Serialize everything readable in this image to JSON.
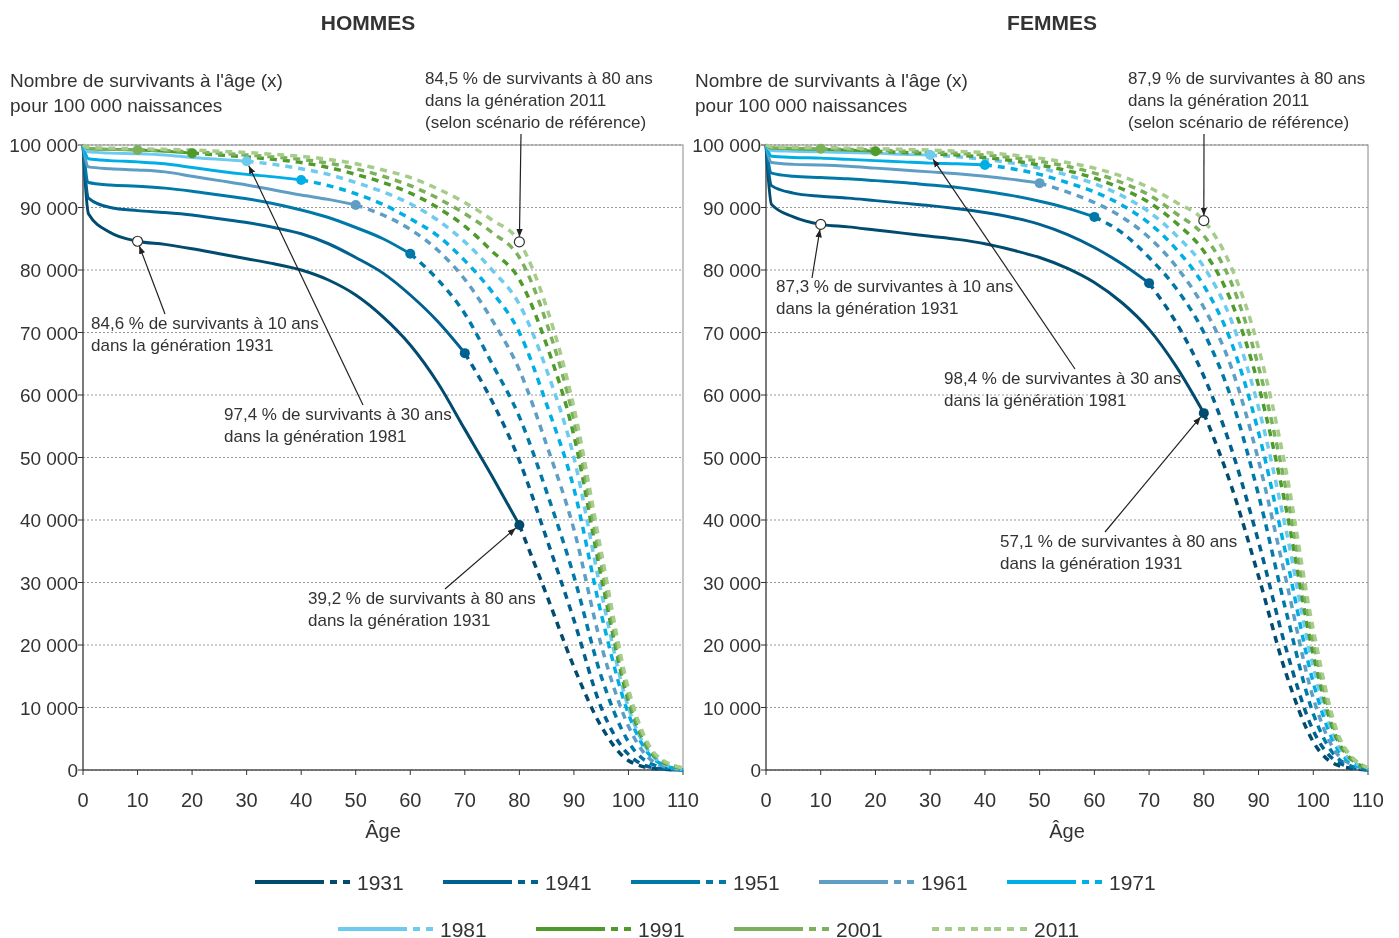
{
  "chart_data": [
    {
      "type": "line",
      "title": "HOMMES",
      "ylabel": "Nombre de survivants à l'âge (x)\npour 100 000 naissances",
      "xlabel": "Âge",
      "xlim": [
        0,
        110
      ],
      "xticks": [
        0,
        10,
        20,
        30,
        40,
        50,
        60,
        70,
        80,
        90,
        100,
        110
      ],
      "ylim": [
        0,
        100000
      ],
      "yticks": [
        {
          "value": 0,
          "label": "0"
        },
        {
          "value": 10000,
          "label": "10 000"
        },
        {
          "value": 20000,
          "label": "20 000"
        },
        {
          "value": 30000,
          "label": "30 000"
        },
        {
          "value": 40000,
          "label": "40 000"
        },
        {
          "value": 50000,
          "label": "50 000"
        },
        {
          "value": 60000,
          "label": "60 000"
        },
        {
          "value": 70000,
          "label": "70 000"
        },
        {
          "value": 80000,
          "label": "80 000"
        },
        {
          "value": 90000,
          "label": "90 000"
        },
        {
          "value": 100000,
          "label": "100 000"
        }
      ],
      "grid": "y",
      "legend": "bottom",
      "annotations": [
        {
          "text": "84,6 % de survivants à 10 ans\ndans la génération 1931",
          "x": 10,
          "y": 84600
        },
        {
          "text": "97,4 % de survivants à 30 ans\ndans la génération 1981",
          "x": 30,
          "y": 97400
        },
        {
          "text": "39,2 % de survivants à 80 ans\ndans la génération 1931",
          "x": 80,
          "y": 39200
        },
        {
          "text": "84,5 % de survivants à 80 ans\ndans la génération 2011\n(selon scénario de référence)",
          "x": 80,
          "y": 84500
        }
      ],
      "series": [
        {
          "name": "1931",
          "color": "#004b6e",
          "line_style": "solid",
          "x": [
            0,
            1,
            5,
            10,
            15,
            20,
            25,
            30,
            35,
            40,
            45,
            50,
            55,
            60,
            65,
            70,
            75,
            80
          ],
          "values": [
            100000,
            89000,
            86000,
            84600,
            84100,
            83400,
            82600,
            81800,
            81000,
            80000,
            78400,
            76000,
            72500,
            68000,
            62000,
            54500,
            47000,
            39200
          ]
        },
        {
          "color": "#004b6e",
          "line_style": "dashed",
          "x": [
            80,
            85,
            90,
            95,
            100,
            105,
            110
          ],
          "values": [
            39200,
            28000,
            16500,
            7000,
            1500,
            200,
            0
          ]
        },
        {
          "name": "1941",
          "color": "#00608f",
          "line_style": "solid",
          "x": [
            0,
            1,
            5,
            10,
            15,
            20,
            25,
            30,
            35,
            40,
            45,
            50,
            55,
            60,
            65,
            70
          ],
          "values": [
            100000,
            91500,
            90000,
            89500,
            89200,
            88800,
            88200,
            87600,
            86800,
            85800,
            84200,
            82000,
            79500,
            76000,
            71800,
            66700
          ]
        },
        {
          "color": "#00608f",
          "line_style": "dashed",
          "x": [
            70,
            75,
            80,
            85,
            90,
            95,
            100,
            105,
            110
          ],
          "values": [
            66700,
            59000,
            49500,
            37000,
            24000,
            10000,
            2500,
            300,
            0
          ]
        },
        {
          "name": "1951",
          "color": "#0079a8",
          "line_style": "solid",
          "x": [
            0,
            1,
            5,
            10,
            15,
            20,
            25,
            30,
            35,
            40,
            45,
            50,
            55,
            60
          ],
          "values": [
            100000,
            94000,
            93600,
            93400,
            93100,
            92600,
            92000,
            91400,
            90600,
            89600,
            88400,
            86800,
            85000,
            82600
          ]
        },
        {
          "color": "#0079a8",
          "line_style": "dashed",
          "x": [
            60,
            65,
            70,
            75,
            80,
            85,
            90,
            95,
            100,
            105,
            110
          ],
          "values": [
            82600,
            78500,
            73000,
            65000,
            56500,
            44500,
            31000,
            15000,
            4500,
            700,
            0
          ]
        },
        {
          "name": "1961",
          "color": "#5f9ec4",
          "line_style": "solid",
          "x": [
            0,
            1,
            5,
            10,
            15,
            20,
            25,
            30,
            35,
            40,
            45,
            50
          ],
          "values": [
            100000,
            96500,
            96200,
            96000,
            95700,
            95000,
            94300,
            93600,
            92800,
            92000,
            91300,
            90400
          ]
        },
        {
          "color": "#5f9ec4",
          "line_style": "dashed",
          "x": [
            50,
            55,
            60,
            65,
            70,
            75,
            80,
            85,
            90,
            95,
            100,
            105,
            110
          ],
          "values": [
            90400,
            88800,
            86500,
            83200,
            78500,
            72000,
            64000,
            52000,
            38500,
            20000,
            7000,
            1100,
            0
          ]
        },
        {
          "name": "1971",
          "color": "#00aee6",
          "line_style": "solid",
          "x": [
            0,
            1,
            5,
            10,
            15,
            20,
            25,
            30,
            35,
            40
          ],
          "values": [
            100000,
            97800,
            97500,
            97300,
            97000,
            96400,
            95800,
            95300,
            94900,
            94400
          ]
        },
        {
          "color": "#00aee6",
          "line_style": "dashed",
          "x": [
            40,
            45,
            50,
            55,
            60,
            65,
            70,
            75,
            80,
            85,
            90,
            95,
            100,
            105,
            110
          ],
          "values": [
            94400,
            93500,
            92200,
            90500,
            88200,
            85500,
            81500,
            76500,
            70000,
            58500,
            45000,
            25000,
            9000,
            1500,
            0
          ]
        },
        {
          "name": "1981",
          "color": "#6ccbee",
          "line_style": "solid",
          "x": [
            0,
            1,
            5,
            10,
            15,
            20,
            25,
            30
          ],
          "values": [
            100000,
            98900,
            98700,
            98600,
            98400,
            98000,
            97700,
            97400
          ]
        },
        {
          "color": "#6ccbee",
          "line_style": "dashed",
          "x": [
            30,
            35,
            40,
            45,
            50,
            55,
            60,
            65,
            70,
            75,
            80,
            85,
            90,
            95,
            100,
            105,
            110
          ],
          "values": [
            97400,
            96900,
            96200,
            95300,
            94000,
            92500,
            90600,
            88000,
            84500,
            80000,
            74500,
            64000,
            50000,
            28500,
            10000,
            1800,
            100
          ]
        },
        {
          "name": "1991",
          "color": "#4e9a2b",
          "line_style": "solid",
          "x": [
            0,
            1,
            5,
            10,
            15,
            20
          ],
          "values": [
            100000,
            99400,
            99300,
            99200,
            99000,
            98700
          ]
        },
        {
          "color": "#4e9a2b",
          "line_style": "dashed",
          "x": [
            20,
            25,
            30,
            35,
            40,
            45,
            50,
            55,
            60,
            65,
            70,
            75,
            80,
            85,
            90,
            95,
            100,
            105,
            110
          ],
          "values": [
            98700,
            98400,
            98100,
            97700,
            97200,
            96400,
            95300,
            94000,
            92300,
            90000,
            87000,
            83000,
            78500,
            68000,
            53500,
            31000,
            11000,
            2000,
            200
          ]
        },
        {
          "name": "2001",
          "color": "#7bb15b",
          "line_style": "solid",
          "x": [
            0,
            1,
            5,
            10
          ],
          "values": [
            100000,
            99500,
            99300,
            99200
          ]
        },
        {
          "color": "#7bb15b",
          "line_style": "dashed",
          "x": [
            10,
            15,
            20,
            25,
            30,
            35,
            40,
            45,
            50,
            55,
            60,
            65,
            70,
            75,
            80,
            85,
            90,
            95,
            100,
            105,
            110
          ],
          "values": [
            99200,
            99100,
            98900,
            98700,
            98400,
            98100,
            97700,
            97100,
            96200,
            95000,
            93500,
            91500,
            89000,
            86000,
            82000,
            71500,
            56000,
            33000,
            12000,
            2200,
            300
          ]
        },
        {
          "name": "2011",
          "color": "#a6cc8a",
          "line_style": "dashed",
          "x": [
            0,
            1,
            5,
            10,
            15,
            20,
            25,
            30,
            35,
            40,
            45,
            50,
            55,
            60,
            65,
            70,
            75,
            80,
            85,
            90,
            95,
            100,
            105,
            110
          ],
          "values": [
            100000,
            99600,
            99500,
            99400,
            99300,
            99200,
            99000,
            98800,
            98500,
            98200,
            97700,
            97000,
            96000,
            94800,
            93000,
            90800,
            88000,
            84500,
            74000,
            58000,
            35000,
            13000,
            2500,
            300
          ]
        },
        {
          "type": "scatter",
          "x": [
            80,
            70,
            60,
            50,
            40,
            30,
            20,
            10
          ],
          "values": [
            39200,
            66700,
            82600,
            90400,
            94400,
            97400,
            98700,
            99200
          ],
          "colors": [
            "#004b6e",
            "#00608f",
            "#0079a8",
            "#5f9ec4",
            "#00aee6",
            "#6ccbee",
            "#4e9a2b",
            "#7bb15b"
          ]
        }
      ]
    },
    {
      "type": "line",
      "title": "FEMMES",
      "ylabel": "Nombre de survivants à l'âge (x)\npour 100 000 naissances",
      "xlabel": "Âge",
      "xlim": [
        0,
        110
      ],
      "xticks": [
        0,
        10,
        20,
        30,
        40,
        50,
        60,
        70,
        80,
        90,
        100,
        110
      ],
      "ylim": [
        0,
        100000
      ],
      "yticks": [
        {
          "value": 0,
          "label": "0"
        },
        {
          "value": 10000,
          "label": "10 000"
        },
        {
          "value": 20000,
          "label": "20 000"
        },
        {
          "value": 30000,
          "label": "30 000"
        },
        {
          "value": 40000,
          "label": "40 000"
        },
        {
          "value": 50000,
          "label": "50 000"
        },
        {
          "value": 60000,
          "label": "60 000"
        },
        {
          "value": 70000,
          "label": "70 000"
        },
        {
          "value": 80000,
          "label": "80 000"
        },
        {
          "value": 90000,
          "label": "90 000"
        },
        {
          "value": 100000,
          "label": "100 000"
        }
      ],
      "grid": "y",
      "annotations": [
        {
          "text": "87,3 % de survivantes à 10 ans\ndans la génération 1931",
          "x": 10,
          "y": 87300
        },
        {
          "text": "98,4 % de survivantes à 30 ans\ndans la génération 1981",
          "x": 30,
          "y": 98400
        },
        {
          "text": "57,1 % de survivantes à 80 ans\ndans la génération 1931",
          "x": 80,
          "y": 57100
        },
        {
          "text": "87,9 % de survivantes à 80 ans\ndans la génération 2011\n(selon scénario de référence)",
          "x": 80,
          "y": 87900
        }
      ],
      "series": [
        {
          "name": "1931",
          "color": "#004b6e",
          "line_style": "solid",
          "x": [
            0,
            1,
            5,
            10,
            15,
            20,
            25,
            30,
            35,
            40,
            45,
            50,
            55,
            60,
            65,
            70,
            75,
            80
          ],
          "values": [
            100000,
            90500,
            88500,
            87300,
            86900,
            86400,
            85900,
            85400,
            84900,
            84200,
            83200,
            82000,
            80300,
            78000,
            74800,
            70500,
            64500,
            57100
          ]
        },
        {
          "color": "#004b6e",
          "line_style": "dashed",
          "x": [
            80,
            85,
            90,
            95,
            100,
            105,
            110
          ],
          "values": [
            57100,
            45500,
            31000,
            15500,
            4500,
            600,
            0
          ]
        },
        {
          "name": "1941",
          "color": "#00608f",
          "line_style": "solid",
          "x": [
            0,
            1,
            5,
            10,
            15,
            20,
            25,
            30,
            35,
            40,
            45,
            50,
            55,
            60,
            65,
            70
          ],
          "values": [
            100000,
            93500,
            92300,
            91800,
            91500,
            91100,
            90700,
            90300,
            89800,
            89200,
            88400,
            87300,
            85700,
            83600,
            81000,
            77900
          ]
        },
        {
          "color": "#00608f",
          "line_style": "dashed",
          "x": [
            70,
            75,
            80,
            85,
            90,
            95,
            100,
            105,
            110
          ],
          "values": [
            77900,
            71500,
            63000,
            51500,
            36500,
            19500,
            6300,
            1000,
            0
          ]
        },
        {
          "name": "1951",
          "color": "#0079a8",
          "line_style": "solid",
          "x": [
            0,
            1,
            5,
            10,
            15,
            20,
            25,
            30,
            35,
            40,
            45,
            50,
            55,
            60
          ],
          "values": [
            100000,
            95500,
            95000,
            94800,
            94600,
            94300,
            94000,
            93600,
            93200,
            92600,
            91900,
            91000,
            89900,
            88500
          ]
        },
        {
          "color": "#0079a8",
          "line_style": "dashed",
          "x": [
            60,
            65,
            70,
            75,
            80,
            85,
            90,
            95,
            100,
            105,
            110
          ],
          "values": [
            88500,
            86000,
            82000,
            77000,
            70000,
            59500,
            44000,
            25500,
            9000,
            1500,
            0
          ]
        },
        {
          "name": "1961",
          "color": "#5f9ec4",
          "line_style": "solid",
          "x": [
            0,
            1,
            5,
            10,
            15,
            20,
            25,
            30,
            35,
            40,
            45,
            50
          ],
          "values": [
            100000,
            97200,
            96900,
            96800,
            96600,
            96300,
            96000,
            95700,
            95400,
            95000,
            94500,
            93900
          ]
        },
        {
          "color": "#5f9ec4",
          "line_style": "dashed",
          "x": [
            50,
            55,
            60,
            65,
            70,
            75,
            80,
            85,
            90,
            95,
            100,
            105,
            110
          ],
          "values": [
            93900,
            92500,
            90800,
            88500,
            85200,
            80500,
            74000,
            64500,
            49500,
            30500,
            11500,
            2000,
            100
          ]
        },
        {
          "name": "1971",
          "color": "#00aee6",
          "line_style": "solid",
          "x": [
            0,
            1,
            5,
            10,
            15,
            20,
            25,
            30,
            35,
            40
          ],
          "values": [
            100000,
            98200,
            98000,
            97900,
            97700,
            97500,
            97300,
            97100,
            97000,
            96800
          ]
        },
        {
          "color": "#00aee6",
          "line_style": "dashed",
          "x": [
            40,
            45,
            50,
            55,
            60,
            65,
            70,
            75,
            80,
            85,
            90,
            95,
            100,
            105,
            110
          ],
          "values": [
            96800,
            96200,
            95300,
            94000,
            92500,
            90400,
            87500,
            83300,
            77500,
            68500,
            54000,
            34500,
            14000,
            2700,
            100
          ]
        },
        {
          "name": "1981",
          "color": "#6ccbee",
          "line_style": "solid",
          "x": [
            0,
            1,
            5,
            10,
            15,
            20,
            25,
            30
          ],
          "values": [
            100000,
            99100,
            99000,
            98900,
            98800,
            98700,
            98500,
            98400
          ]
        },
        {
          "color": "#6ccbee",
          "line_style": "dashed",
          "x": [
            30,
            35,
            40,
            45,
            50,
            55,
            60,
            65,
            70,
            75,
            80,
            85,
            90,
            95,
            100,
            105,
            110
          ],
          "values": [
            98400,
            98100,
            97700,
            97100,
            96300,
            95200,
            93800,
            91900,
            89300,
            85500,
            80500,
            72000,
            58000,
            38500,
            16500,
            3300,
            200
          ]
        },
        {
          "name": "1991",
          "color": "#4e9a2b",
          "line_style": "solid",
          "x": [
            0,
            1,
            5,
            10,
            15,
            20
          ],
          "values": [
            100000,
            99500,
            99400,
            99300,
            99200,
            99000
          ]
        },
        {
          "color": "#4e9a2b",
          "line_style": "dashed",
          "x": [
            20,
            25,
            30,
            35,
            40,
            45,
            50,
            55,
            60,
            65,
            70,
            75,
            80,
            85,
            90,
            95,
            100,
            105,
            110
          ],
          "values": [
            99000,
            98800,
            98600,
            98400,
            98000,
            97500,
            96800,
            95900,
            94700,
            93000,
            90800,
            87500,
            83000,
            75000,
            61500,
            42000,
            18500,
            3800,
            200
          ]
        },
        {
          "name": "2001",
          "color": "#7bb15b",
          "line_style": "solid",
          "x": [
            0,
            1,
            5,
            10
          ],
          "values": [
            100000,
            99600,
            99500,
            99400
          ]
        },
        {
          "color": "#7bb15b",
          "line_style": "dashed",
          "x": [
            10,
            15,
            20,
            25,
            30,
            35,
            40,
            45,
            50,
            55,
            60,
            65,
            70,
            75,
            80,
            85,
            90,
            95,
            100,
            105,
            110
          ],
          "values": [
            99400,
            99300,
            99200,
            99000,
            98900,
            98700,
            98400,
            98000,
            97400,
            96600,
            95500,
            94000,
            92000,
            89000,
            85500,
            78000,
            64500,
            45000,
            20500,
            4300,
            300
          ]
        },
        {
          "name": "2011",
          "color": "#a6cc8a",
          "line_style": "dashed",
          "x": [
            0,
            1,
            5,
            10,
            15,
            20,
            25,
            30,
            35,
            40,
            45,
            50,
            55,
            60,
            65,
            70,
            75,
            80,
            85,
            90,
            95,
            100,
            105,
            110
          ],
          "values": [
            100000,
            99700,
            99600,
            99600,
            99500,
            99400,
            99300,
            99200,
            99000,
            98800,
            98400,
            97900,
            97200,
            96300,
            95000,
            93200,
            90800,
            87900,
            80500,
            67500,
            48000,
            22500,
            4800,
            300
          ]
        },
        {
          "type": "scatter",
          "x": [
            80,
            70,
            60,
            50,
            40,
            30,
            20,
            10
          ],
          "values": [
            57100,
            77900,
            88500,
            93900,
            96800,
            98400,
            99000,
            99400
          ],
          "colors": [
            "#004b6e",
            "#00608f",
            "#0079a8",
            "#5f9ec4",
            "#00aee6",
            "#6ccbee",
            "#4e9a2b",
            "#7bb15b"
          ]
        }
      ]
    }
  ]
}
